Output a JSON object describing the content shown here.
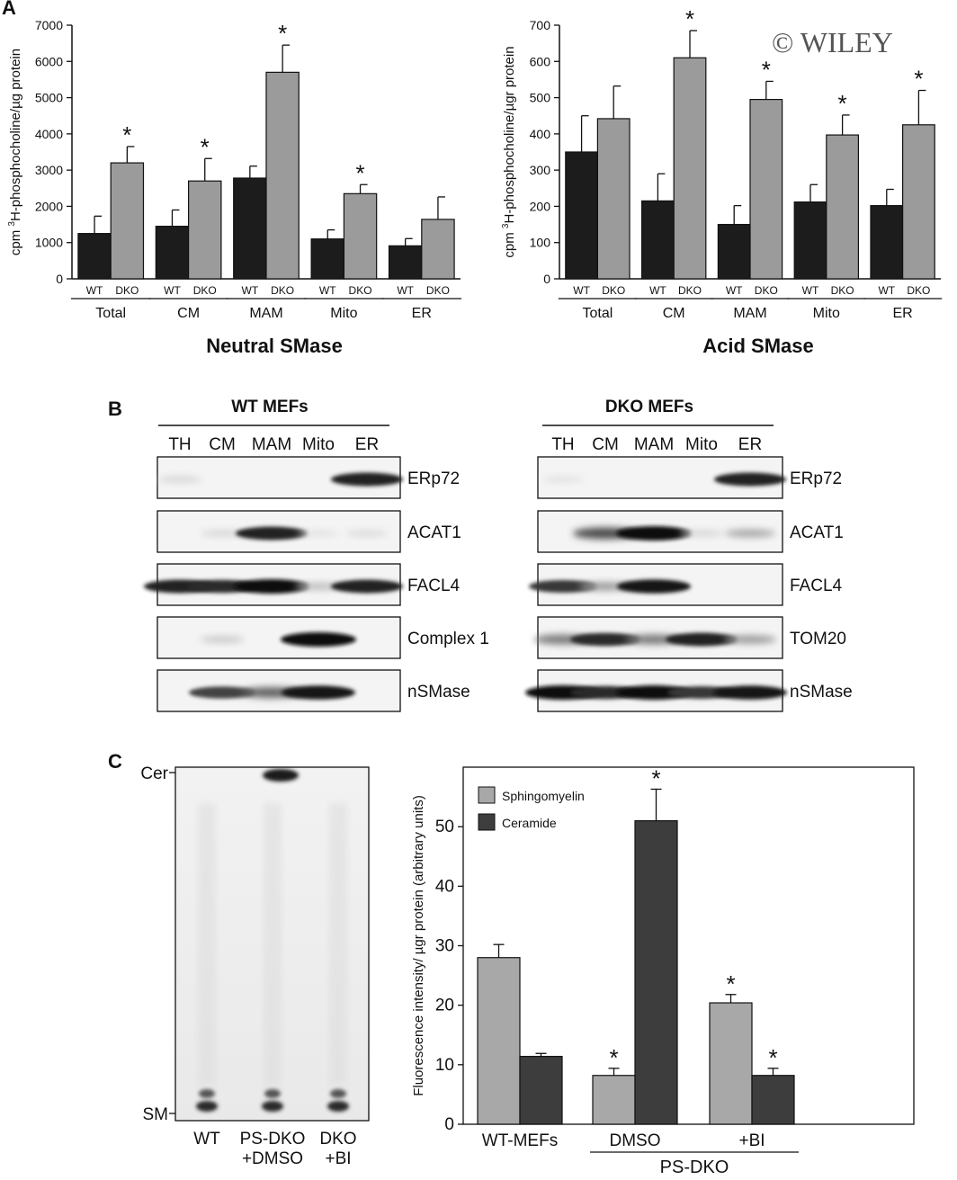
{
  "watermark": "© WILEY",
  "panels": {
    "A": "A",
    "B": "B",
    "C": "C"
  },
  "chart_data": [
    {
      "id": "neutral",
      "type": "bar",
      "title": "Neutral SMase",
      "ylabel": "cpm 3H-phosphocholine/µg protein",
      "ylabel_main": "cpm ",
      "ylabel_sup": "3",
      "ylabel_rest": "H-phosphocholine/µg protein",
      "ylim": [
        0,
        7000
      ],
      "yticks": [
        0,
        1000,
        2000,
        3000,
        4000,
        5000,
        6000,
        7000
      ],
      "categories": [
        "Total",
        "CM",
        "MAM",
        "Mito",
        "ER"
      ],
      "sub_labels": [
        "WT",
        "DKO"
      ],
      "series": [
        {
          "name": "WT",
          "color": "#1c1c1c",
          "values": [
            1250,
            1450,
            2780,
            1100,
            910
          ],
          "errors": [
            480,
            450,
            330,
            250,
            200
          ]
        },
        {
          "name": "DKO",
          "color": "#9b9b9b",
          "values": [
            3200,
            2700,
            5700,
            2350,
            1640
          ],
          "errors": [
            450,
            620,
            750,
            250,
            620
          ]
        }
      ],
      "significant": [
        [
          false,
          true
        ],
        [
          false,
          true
        ],
        [
          false,
          true
        ],
        [
          false,
          true
        ],
        [
          false,
          false
        ]
      ]
    },
    {
      "id": "acid",
      "type": "bar",
      "title": "Acid SMase",
      "ylabel": "cpm 3H-phosphocholine/µgr protein",
      "ylabel_main": "cpm ",
      "ylabel_sup": "3",
      "ylabel_rest": "H-phosphocholine/µgr protein",
      "ylim": [
        0,
        700
      ],
      "yticks": [
        0,
        100,
        200,
        300,
        400,
        500,
        600,
        700
      ],
      "categories": [
        "Total",
        "CM",
        "MAM",
        "Mito",
        "ER"
      ],
      "sub_labels": [
        "WT",
        "DKO"
      ],
      "series": [
        {
          "name": "WT",
          "color": "#1c1c1c",
          "values": [
            350,
            215,
            150,
            212,
            202
          ],
          "errors": [
            100,
            75,
            52,
            48,
            45
          ]
        },
        {
          "name": "DKO",
          "color": "#9b9b9b",
          "values": [
            442,
            610,
            495,
            397,
            425
          ],
          "errors": [
            90,
            75,
            50,
            55,
            95
          ]
        }
      ],
      "significant": [
        [
          false,
          false
        ],
        [
          false,
          true
        ],
        [
          false,
          true
        ],
        [
          false,
          true
        ],
        [
          false,
          true
        ]
      ]
    },
    {
      "id": "fluor",
      "type": "bar",
      "title": "",
      "ylabel": "Fluorescence intensity/ µgr protein (arbitrary units)",
      "ylim": [
        0,
        60
      ],
      "yticks": [
        0,
        10,
        20,
        30,
        40,
        50
      ],
      "categories": [
        "WT-MEFs",
        "DMSO",
        "+BI"
      ],
      "group_label": "PS-DKO",
      "series": [
        {
          "name": "Sphingomyelin",
          "color": "#a8a8a8",
          "values": [
            28,
            8.2,
            20.4
          ],
          "errors": [
            2.2,
            1.2,
            1.4
          ]
        },
        {
          "name": "Ceramide",
          "color": "#3d3d3d",
          "values": [
            11.4,
            51,
            8.2
          ],
          "errors": [
            0.5,
            5.3,
            1.2
          ]
        }
      ],
      "significant": [
        [
          false,
          false
        ],
        [
          true,
          true
        ],
        [
          true,
          true
        ]
      ]
    }
  ],
  "blots": {
    "wt_title": "WT MEFs",
    "dko_title": "DKO MEFs",
    "lanes": [
      "TH",
      "CM",
      "MAM",
      "Mito",
      "ER"
    ],
    "wt_proteins": [
      "ERp72",
      "ACAT1",
      "FACL4",
      "Complex 1",
      "nSMase"
    ],
    "dko_proteins": [
      "ERp72",
      "ACAT1",
      "FACL4",
      "TOM20",
      "nSMase"
    ],
    "wt_intensity": [
      [
        0.1,
        0,
        0,
        0,
        0.9
      ],
      [
        0,
        0.1,
        0.9,
        0.05,
        0.08
      ],
      [
        0.9,
        0.85,
        1.0,
        0.2,
        0.9
      ],
      [
        0,
        0.15,
        0,
        1.0,
        0
      ],
      [
        0,
        0.75,
        0.6,
        0.95,
        0
      ]
    ],
    "dko_intensity": [
      [
        0.05,
        0,
        0,
        0,
        0.9
      ],
      [
        0,
        0.7,
        1.0,
        0.1,
        0.3
      ],
      [
        0.8,
        0.35,
        0.95,
        0,
        0
      ],
      [
        0.5,
        0.85,
        0.5,
        0.9,
        0.35
      ],
      [
        1.0,
        0.85,
        1.0,
        0.8,
        0.95
      ]
    ]
  },
  "tlc": {
    "cer_label": "Cer",
    "sm_label": "SM",
    "lanes": [
      [
        "WT"
      ],
      [
        "PS-DKO",
        "+DMSO"
      ],
      [
        "DKO",
        "+BI"
      ]
    ]
  }
}
